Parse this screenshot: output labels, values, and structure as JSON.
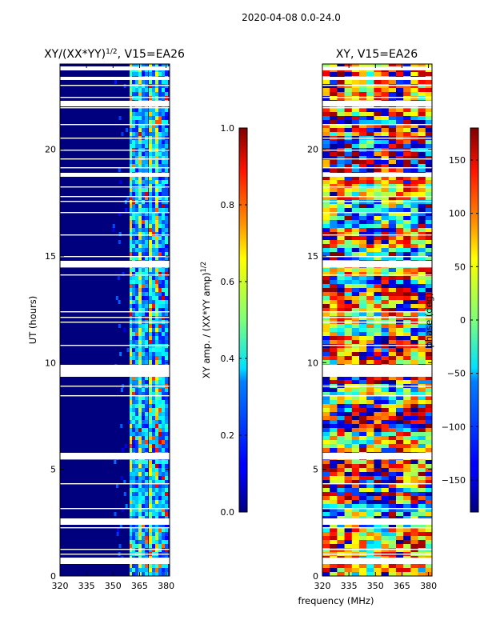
{
  "figure": {
    "suptitle": "2020-04-08 0.0-24.0",
    "xlabel": "frequency (MHz)"
  },
  "chart_data": [
    {
      "type": "heatmap",
      "title_main": "XY/(XX*YY)",
      "title_sup": "1/2",
      "title_rest": ", V15=EA26",
      "ylabel": "UT (hours)",
      "xlim": [
        320,
        382
      ],
      "ylim": [
        0,
        24
      ],
      "xticks": [
        "320",
        "335",
        "350",
        "365",
        "380"
      ],
      "yticks": [
        "0",
        "5",
        "10",
        "15",
        "20"
      ],
      "colorbar": {
        "label_main": "XY amp. / (XX*YY amp)",
        "label_sup": "1/2",
        "range": [
          0.0,
          1.0
        ],
        "ticks": [
          "0.0",
          "0.2",
          "0.4",
          "0.6",
          "0.8",
          "1.0"
        ],
        "colormap": "jet"
      }
    },
    {
      "type": "heatmap",
      "title_main": "XY, V15=EA26",
      "ylabel": "",
      "xlim": [
        320,
        382
      ],
      "ylim": [
        0,
        24
      ],
      "xticks": [
        "320",
        "335",
        "350",
        "365",
        "380"
      ],
      "yticks": [
        "0",
        "5",
        "10",
        "15",
        "20"
      ],
      "colorbar": {
        "label_main": "phase (deg)",
        "range": [
          -180,
          180
        ],
        "ticks": [
          "−150",
          "−100",
          "−50",
          "0",
          "50",
          "100",
          "150"
        ],
        "colormap": "jet"
      }
    }
  ]
}
